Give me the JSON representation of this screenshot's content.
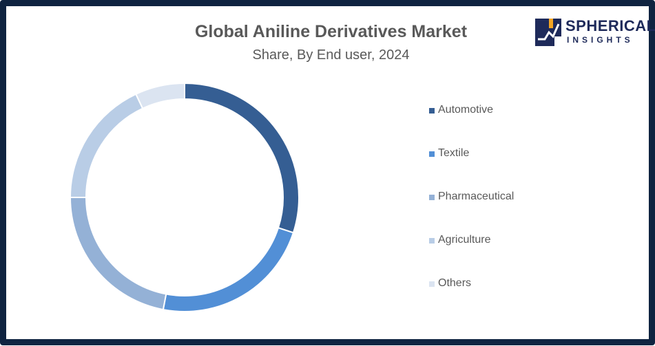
{
  "logo": {
    "word": "SPHERICAL",
    "sub": "INSIGHTS"
  },
  "chart_data": {
    "type": "pie",
    "subtype": "donut",
    "title": "Global Aniline Derivatives Market",
    "subtitle": "Share, By End user, 2024",
    "legend_position": "right",
    "categories": [
      "Automotive",
      "Textile",
      "Pharmaceutical",
      "Agriculture",
      "Others"
    ],
    "values": [
      30,
      23,
      22,
      18,
      7
    ],
    "colors": [
      "#355e93",
      "#528fd6",
      "#94b1d6",
      "#b9cde6",
      "#dbe4f1"
    ]
  }
}
